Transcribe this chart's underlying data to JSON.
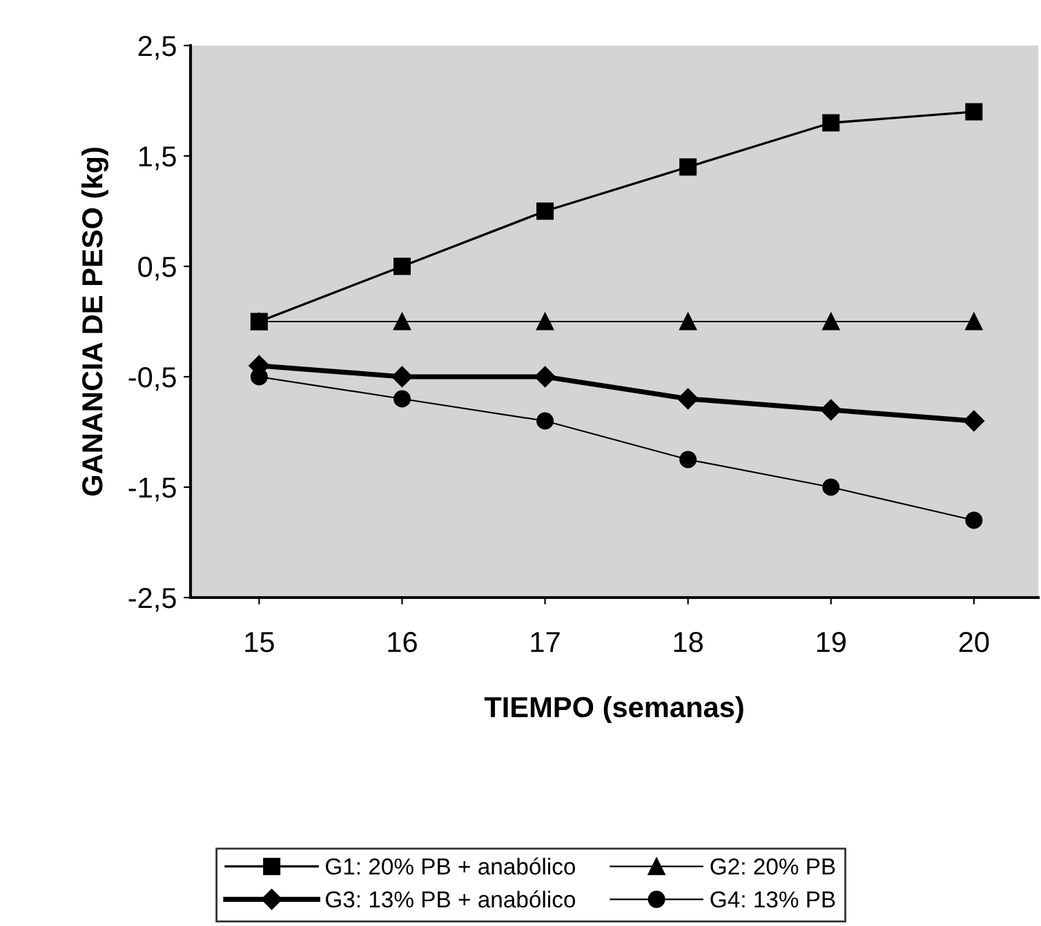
{
  "chart_data": {
    "type": "line",
    "xlabel": "TIEMPO (semanas)",
    "ylabel": "GANANCIA DE PESO (kg)",
    "x": [
      15,
      16,
      17,
      18,
      19,
      20
    ],
    "xlim": [
      14.52,
      20.45
    ],
    "xticks": [
      15,
      16,
      17,
      18,
      19,
      20
    ],
    "ylim": [
      -2.5,
      2.5
    ],
    "yticks": [
      {
        "value": -2.5,
        "label": "-2,5"
      },
      {
        "value": -1.5,
        "label": "-1,5"
      },
      {
        "value": -0.5,
        "label": "-0,5"
      },
      {
        "value": 0.5,
        "label": "0,5"
      },
      {
        "value": 1.5,
        "label": "1,5"
      },
      {
        "value": 2.5,
        "label": "2,5"
      }
    ],
    "grid": false,
    "legend": "bottom",
    "line_style": "solid",
    "series": [
      {
        "name": "G1: 20% PB + anabólico",
        "color": "#000000",
        "marker": "square",
        "values": [
          0,
          0.5,
          1.0,
          1.4,
          1.8,
          1.9
        ]
      },
      {
        "name": "G2: 20% PB",
        "color": "#000000",
        "marker": "triangle",
        "values": [
          0,
          0,
          0,
          0,
          0,
          0
        ]
      },
      {
        "name": "G3: 13% PB + anabólico",
        "color": "#000000",
        "marker": "diamond",
        "values": [
          -0.4,
          -0.5,
          -0.5,
          -0.7,
          -0.8,
          -0.9
        ]
      },
      {
        "name": "G4: 13% PB",
        "color": "#000000",
        "marker": "circle",
        "values": [
          -0.5,
          -0.7,
          -0.9,
          -1.25,
          -1.5,
          -1.8
        ]
      }
    ]
  }
}
